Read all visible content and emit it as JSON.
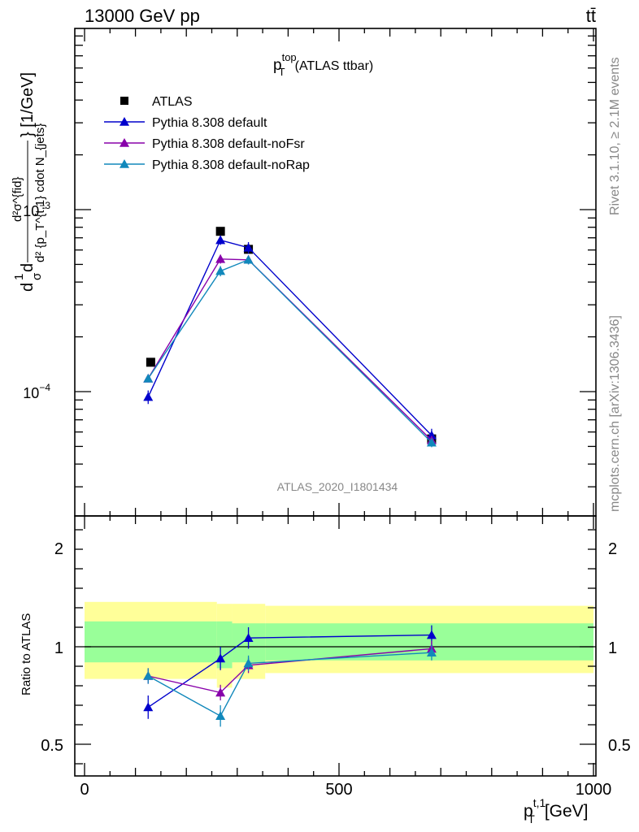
{
  "header": {
    "left": "13000 GeV pp",
    "right": "tt̄"
  },
  "side_text": {
    "rivet": "Rivet 3.1.10, ≥ 2.1M events",
    "mcplots": "mcplots.cern.ch [arXiv:1306.3436]"
  },
  "chart_data": [
    {
      "type": "scatter",
      "title_main": "p",
      "title_sup": "top",
      "title_sub": "T",
      "title_rest": "(ATLAS ttbar)",
      "watermark": "ATLAS_2020_I1801434",
      "yscale": "log",
      "ylim": [
        2.7e-05,
        0.0103
      ],
      "xlim": [
        -20,
        1000
      ],
      "ylabel_parts": {
        "d1": "d",
        "frac1_num": "1",
        "frac1_den": "σ",
        "d2": "d",
        "frac2_num": "d²σ^{fid}",
        "frac2_den": "d² {p_T^{t,1} cdot N_{jets}",
        "unit": "} [1/GeV]"
      },
      "ytick_labels": [
        {
          "value": 0.0001,
          "base": "10",
          "exp": "−4"
        },
        {
          "value": 0.001,
          "base": "10",
          "exp": "−3"
        }
      ],
      "legend_position": "top-left",
      "series": [
        {
          "name": "ATLAS",
          "marker": "square",
          "color": "#000000",
          "x": [
            130,
            267,
            322,
            682
          ],
          "y": [
            0.000145,
            0.00076,
            0.000605,
            5.5e-05
          ],
          "yerr": [
            0,
            0,
            0,
            0
          ]
        },
        {
          "name": "Pythia 8.308 default",
          "marker": "triangle",
          "color": "#0000cc",
          "x": [
            125,
            267,
            322,
            682
          ],
          "y": [
            9.35e-05,
            0.00068,
            0.000618,
            5.75e-05
          ],
          "yerr": [
            8e-06,
            4e-05,
            4.5e-05,
            5e-06
          ]
        },
        {
          "name": "Pythia 8.308 default-noFsr",
          "marker": "triangle",
          "color": "#8800aa",
          "x": [
            125,
            267,
            322,
            682
          ],
          "y": [
            0.000118,
            0.000535,
            0.00053,
            5.4e-05
          ],
          "yerr": [
            5e-06,
            3e-05,
            3e-05,
            3e-06
          ]
        },
        {
          "name": "Pythia 8.308 default-noRap",
          "marker": "triangle",
          "color": "#1188bb",
          "x": [
            125,
            267,
            322,
            682
          ],
          "y": [
            0.000118,
            0.00046,
            0.00053,
            5.25e-05
          ],
          "yerr": [
            5e-06,
            3e-05,
            3e-05,
            3e-06
          ]
        }
      ]
    },
    {
      "type": "scatter",
      "ylabel": "Ratio to ATLAS",
      "xlabel_main": "p",
      "xlabel_sup": "t,1",
      "xlabel_sub": "T",
      "xlabel_unit": "[GeV]",
      "xlim": [
        -20,
        1000
      ],
      "ylim": [
        0.35,
        2.3
      ],
      "x_tick_labels": [
        "0",
        "500",
        "1000"
      ],
      "x_tick_values": [
        0,
        500,
        1000
      ],
      "y_tick_labels": [
        "0.5",
        "1",
        "2"
      ],
      "y_tick_values": [
        0.5,
        1,
        2
      ],
      "reference_line": 1,
      "bands": [
        {
          "x0": 0,
          "x1": 260,
          "yellow": [
            0.835,
            1.23
          ],
          "green": [
            0.92,
            1.13
          ]
        },
        {
          "x0": 260,
          "x1": 290,
          "yellow": [
            0.79,
            1.22
          ],
          "green": [
            0.89,
            1.13
          ]
        },
        {
          "x0": 290,
          "x1": 355,
          "yellow": [
            0.835,
            1.22
          ],
          "green": [
            0.92,
            1.12
          ]
        },
        {
          "x0": 355,
          "x1": 1000,
          "yellow": [
            0.865,
            1.21
          ],
          "green": [
            0.93,
            1.12
          ]
        }
      ],
      "band_colors": {
        "yellow": "#ffff99",
        "green": "#99ff99"
      },
      "series": [
        {
          "name": "Pythia 8.308 default",
          "color": "#0000cc",
          "x": [
            125,
            267,
            322,
            682
          ],
          "y": [
            0.69,
            0.94,
            1.045,
            1.06
          ],
          "yerr": [
            0.06,
            0.06,
            0.055,
            0.05
          ]
        },
        {
          "name": "Pythia 8.308 default-noFsr",
          "color": "#8800aa",
          "x": [
            125,
            267,
            322,
            682
          ],
          "y": [
            0.85,
            0.765,
            0.905,
            0.99
          ],
          "yerr": [
            0.04,
            0.04,
            0.04,
            0.04
          ]
        },
        {
          "name": "Pythia 8.308 default-noRap",
          "color": "#1188bb",
          "x": [
            125,
            267,
            322,
            682
          ],
          "y": [
            0.85,
            0.645,
            0.915,
            0.97
          ],
          "yerr": [
            0.04,
            0.055,
            0.04,
            0.04
          ]
        }
      ]
    }
  ]
}
